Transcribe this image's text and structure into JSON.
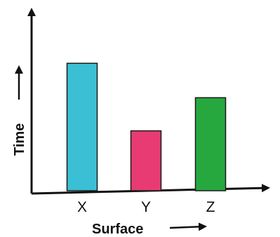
{
  "chart_data": {
    "type": "bar",
    "categories": [
      "X",
      "Y",
      "Z"
    ],
    "values": [
      10.0,
      4.7,
      7.3
    ],
    "xlabel": "Surface",
    "ylabel": "Time",
    "ylim": [
      0,
      11.5
    ],
    "grid": false,
    "colors": {
      "X": "#3bbfd4",
      "Y": "#e83b73",
      "Z": "#27a83f",
      "bar_border": "#1a1a1a",
      "axis": "#111111"
    }
  }
}
